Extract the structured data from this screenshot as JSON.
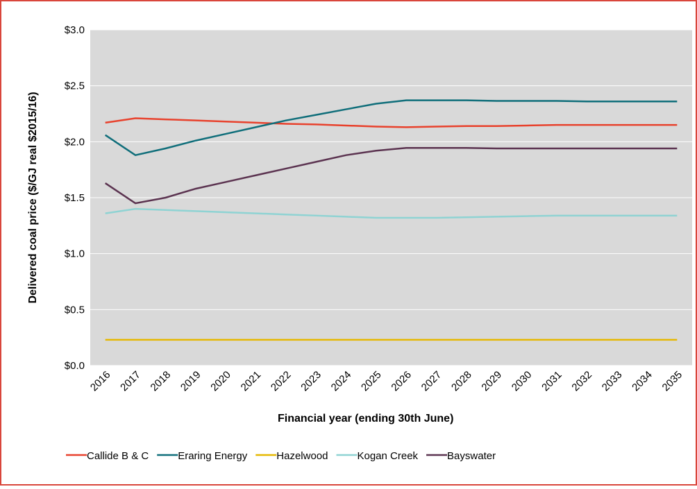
{
  "chart_data": {
    "type": "line",
    "x_label": "Financial year (ending 30th June)",
    "y_label": "Delivered coal price ($/GJ real $2015/16)",
    "categories": [
      "2016",
      "2017",
      "2018",
      "2019",
      "2020",
      "2021",
      "2022",
      "2023",
      "2024",
      "2025",
      "2026",
      "2027",
      "2028",
      "2029",
      "2030",
      "2031",
      "2032",
      "2033",
      "2034",
      "2035"
    ],
    "series": [
      {
        "name": "Callide B & C",
        "color": "#e8412c",
        "values": [
          2.17,
          2.21,
          2.2,
          2.19,
          2.18,
          2.17,
          2.16,
          2.155,
          2.145,
          2.135,
          2.13,
          2.135,
          2.14,
          2.14,
          2.145,
          2.15,
          2.15,
          2.15,
          2.15,
          2.15
        ]
      },
      {
        "name": "Eraring Energy",
        "color": "#0f6e7a",
        "values": [
          2.06,
          1.88,
          1.94,
          2.01,
          2.07,
          2.13,
          2.19,
          2.24,
          2.29,
          2.34,
          2.37,
          2.37,
          2.37,
          2.365,
          2.365,
          2.365,
          2.36,
          2.36,
          2.36,
          2.36
        ]
      },
      {
        "name": "Hazelwood",
        "color": "#e6b800",
        "values": [
          0.23,
          0.23,
          0.23,
          0.23,
          0.23,
          0.23,
          0.23,
          0.23,
          0.23,
          0.23,
          0.23,
          0.23,
          0.23,
          0.23,
          0.23,
          0.23,
          0.23,
          0.23,
          0.23,
          0.23
        ]
      },
      {
        "name": "Kogan Creek",
        "color": "#8fd3d3",
        "values": [
          1.36,
          1.4,
          1.39,
          1.38,
          1.37,
          1.36,
          1.35,
          1.34,
          1.33,
          1.32,
          1.32,
          1.32,
          1.325,
          1.33,
          1.335,
          1.34,
          1.34,
          1.34,
          1.34,
          1.34
        ]
      },
      {
        "name": "Bayswater",
        "color": "#5b3350",
        "values": [
          1.63,
          1.45,
          1.5,
          1.58,
          1.64,
          1.7,
          1.76,
          1.82,
          1.88,
          1.92,
          1.945,
          1.945,
          1.945,
          1.94,
          1.94,
          1.94,
          1.94,
          1.94,
          1.94,
          1.94
        ]
      }
    ],
    "ylim": [
      0,
      3
    ],
    "yticks": [
      {
        "value": 0,
        "label": "$0.0"
      },
      {
        "value": 0.5,
        "label": "$0.5"
      },
      {
        "value": 1,
        "label": "$1.0"
      },
      {
        "value": 1.5,
        "label": "$1.5"
      },
      {
        "value": 2,
        "label": "$2.0"
      },
      {
        "value": 2.5,
        "label": "$2.5"
      },
      {
        "value": 3,
        "label": "$3.0"
      }
    ],
    "grid": true,
    "legend": "bottom"
  }
}
